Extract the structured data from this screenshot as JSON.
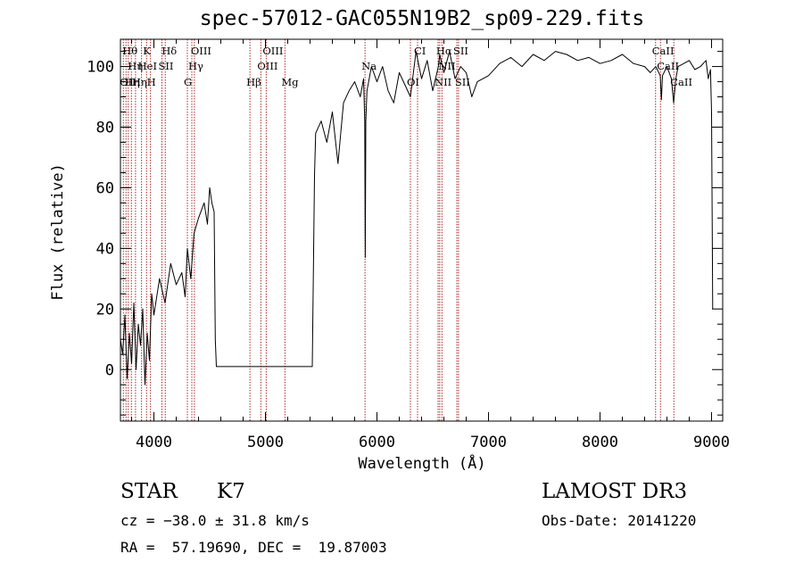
{
  "chart_data": {
    "type": "line",
    "title": "spec-57012-GAC055N19B2_sp09-229.fits",
    "xlabel": "Wavelength (Å)",
    "ylabel": "Flux (relative)",
    "xlim": [
      3700,
      9100
    ],
    "ylim": [
      -17,
      109
    ],
    "xticks": [
      4000,
      5000,
      6000,
      7000,
      8000,
      9000
    ],
    "yticks": [
      0,
      20,
      40,
      60,
      80,
      100
    ],
    "series": [
      {
        "name": "flux",
        "x": [
          3700,
          3720,
          3740,
          3760,
          3780,
          3800,
          3820,
          3840,
          3860,
          3880,
          3900,
          3920,
          3940,
          3960,
          3980,
          4000,
          4050,
          4100,
          4150,
          4200,
          4250,
          4280,
          4300,
          4330,
          4360,
          4400,
          4450,
          4480,
          4500,
          4520,
          4540,
          4550,
          4560,
          5420,
          5440,
          5450,
          5500,
          5550,
          5600,
          5650,
          5700,
          5750,
          5800,
          5850,
          5880,
          5890,
          5895,
          5900,
          5910,
          5950,
          6000,
          6050,
          6100,
          6150,
          6200,
          6250,
          6300,
          6350,
          6400,
          6450,
          6500,
          6550,
          6563,
          6600,
          6650,
          6700,
          6750,
          6800,
          6850,
          6900,
          7000,
          7100,
          7200,
          7300,
          7400,
          7500,
          7600,
          7700,
          7800,
          7900,
          8000,
          8100,
          8200,
          8300,
          8400,
          8450,
          8500,
          8540,
          8550,
          8560,
          8600,
          8640,
          8660,
          8680,
          8700,
          8800,
          8850,
          8900,
          8950,
          8970,
          8990,
          9000,
          9010
        ],
        "y": [
          10,
          5,
          18,
          -3,
          12,
          2,
          22,
          0,
          15,
          8,
          20,
          -5,
          12,
          3,
          25,
          18,
          30,
          22,
          35,
          28,
          32,
          24,
          40,
          30,
          45,
          50,
          55,
          48,
          60,
          55,
          52,
          10,
          1,
          1,
          64,
          78,
          82,
          75,
          85,
          68,
          88,
          92,
          95,
          90,
          96,
          82,
          37,
          82,
          92,
          100,
          95,
          100,
          92,
          88,
          98,
          94,
          90,
          105,
          96,
          102,
          92,
          100,
          104,
          98,
          105,
          96,
          100,
          98,
          90,
          95,
          97,
          101,
          103,
          100,
          104,
          102,
          105,
          104,
          102,
          103,
          101,
          102,
          104,
          101,
          100,
          98,
          100,
          97,
          89,
          97,
          100,
          96,
          88,
          96,
          100,
          102,
          99,
          100,
          102,
          96,
          99,
          85,
          20
        ]
      }
    ],
    "lines": [
      {
        "x": 3726,
        "label": "OII",
        "row": 2
      },
      {
        "x": 3750,
        "label": "Hθ",
        "row": 0
      },
      {
        "x": 3770,
        "label": "Hη",
        "row": 2
      },
      {
        "x": 3798,
        "label": "Hη",
        "row": 1
      },
      {
        "x": 3835,
        "label": "Hη",
        "row": 2
      },
      {
        "x": 3889,
        "label": "HeI",
        "row": 1
      },
      {
        "x": 3934,
        "label": "K",
        "row": 0
      },
      {
        "x": 3969,
        "label": "H",
        "row": 2
      },
      {
        "x": 4072,
        "label": "SII",
        "row": 1
      },
      {
        "x": 4102,
        "label": "Hδ",
        "row": 0
      },
      {
        "x": 4300,
        "label": "G",
        "row": 2
      },
      {
        "x": 4340,
        "label": "Hγ",
        "row": 1
      },
      {
        "x": 4363,
        "label": "OIII",
        "row": 0
      },
      {
        "x": 4861,
        "label": "Hβ",
        "row": 2
      },
      {
        "x": 4959,
        "label": "OIII",
        "row": 1
      },
      {
        "x": 5007,
        "label": "OIII",
        "row": 0
      },
      {
        "x": 5175,
        "label": "Mg",
        "row": 2
      },
      {
        "x": 5893,
        "label": "Na",
        "row": 1
      },
      {
        "x": 6300,
        "label": "OI",
        "row": 2
      },
      {
        "x": 6364,
        "label": "CI",
        "row": 0
      },
      {
        "x": 6548,
        "label": "NII",
        "row": 2
      },
      {
        "x": 6563,
        "label": "Hα",
        "row": 0
      },
      {
        "x": 6583,
        "label": "NII",
        "row": 1
      },
      {
        "x": 6716,
        "label": "SII",
        "row": 0
      },
      {
        "x": 6731,
        "label": "SII",
        "row": 2
      },
      {
        "x": 8498,
        "label": "CaII",
        "row": 0
      },
      {
        "x": 8542,
        "label": "CaII",
        "row": 1
      },
      {
        "x": 8662,
        "label": "CaII",
        "row": 2
      }
    ]
  },
  "info": {
    "object_class": "STAR",
    "subclass": "K7",
    "survey": "LAMOST DR3",
    "cz": "cz = −38.0 ± 31.8 km/s",
    "obs_date": "Obs-Date: 20141220",
    "radec": "RA =  57.19690, DEC =  19.87003"
  },
  "colors": {
    "spectrum": "#000000",
    "line_markers": "#b22222",
    "axes": "#000000"
  }
}
